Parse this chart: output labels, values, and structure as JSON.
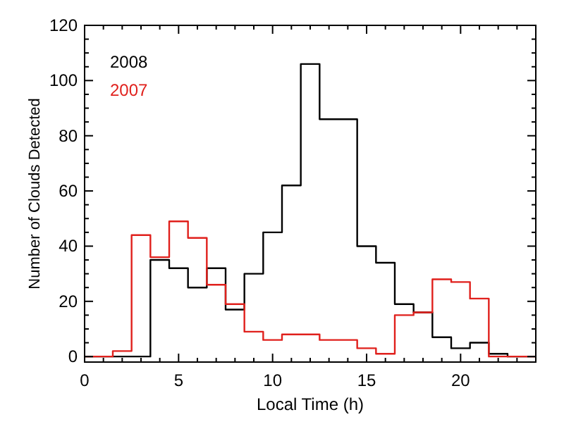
{
  "chart_data": {
    "type": "histogram",
    "xlabel": "Local Time (h)",
    "ylabel": "Number of Clouds Detected",
    "bins": [
      0,
      0.5,
      1.5,
      2.5,
      3.5,
      4.5,
      5.5,
      6.5,
      7.5,
      8.5,
      9.5,
      10.5,
      11.5,
      12.5,
      13.5,
      14.5,
      15.5,
      16.5,
      17.5,
      18.5,
      19.5,
      20.5,
      21.5,
      22.5,
      23.5,
      24
    ],
    "series": [
      {
        "name": "2008",
        "color": "#000000",
        "values": [
          0,
          0,
          0,
          0,
          35,
          32,
          25,
          32,
          17,
          30,
          45,
          62,
          106,
          86,
          86,
          40,
          34,
          19,
          16,
          7,
          3,
          5,
          1,
          0,
          0
        ]
      },
      {
        "name": "2007",
        "color": "#e0201c",
        "values": [
          0,
          0,
          2,
          44,
          36,
          49,
          43,
          26,
          19,
          9,
          6,
          8,
          8,
          6,
          6,
          3,
          1,
          15,
          16,
          28,
          27,
          21,
          0,
          0,
          0
        ]
      }
    ],
    "xlim": [
      0,
      24
    ],
    "xticks": [
      0,
      {
        "value": 1,
        "label": null
      },
      {
        "value": 2,
        "label": null
      },
      {
        "value": 3,
        "label": null
      },
      {
        "value": 4,
        "label": null
      },
      5,
      {
        "value": 6,
        "label": null
      },
      {
        "value": 7,
        "label": null
      },
      {
        "value": 8,
        "label": null
      },
      {
        "value": 9,
        "label": null
      },
      10,
      {
        "value": 11,
        "label": null
      },
      {
        "value": 12,
        "label": null
      },
      {
        "value": 13,
        "label": null
      },
      {
        "value": 14,
        "label": null
      },
      15,
      {
        "value": 16,
        "label": null
      },
      {
        "value": 17,
        "label": null
      },
      {
        "value": 18,
        "label": null
      },
      {
        "value": 19,
        "label": null
      },
      20,
      {
        "value": 21,
        "label": null
      },
      {
        "value": 22,
        "label": null
      },
      {
        "value": 23,
        "label": null
      }
    ],
    "ylim": [
      -2,
      120
    ],
    "yticks": [
      0,
      {
        "value": 5,
        "label": null
      },
      {
        "value": 10,
        "label": null
      },
      {
        "value": 15,
        "label": null
      },
      20,
      {
        "value": 25,
        "label": null
      },
      {
        "value": 30,
        "label": null
      },
      {
        "value": 35,
        "label": null
      },
      40,
      {
        "value": 45,
        "label": null
      },
      {
        "value": 50,
        "label": null
      },
      {
        "value": 55,
        "label": null
      },
      60,
      {
        "value": 65,
        "label": null
      },
      {
        "value": 70,
        "label": null
      },
      {
        "value": 75,
        "label": null
      },
      80,
      {
        "value": 85,
        "label": null
      },
      {
        "value": 90,
        "label": null
      },
      {
        "value": 95,
        "label": null
      },
      100,
      {
        "value": 105,
        "label": null
      },
      {
        "value": 110,
        "label": null
      },
      {
        "value": 115,
        "label": null
      },
      120
    ],
    "legend": "top left",
    "grid": false
  }
}
